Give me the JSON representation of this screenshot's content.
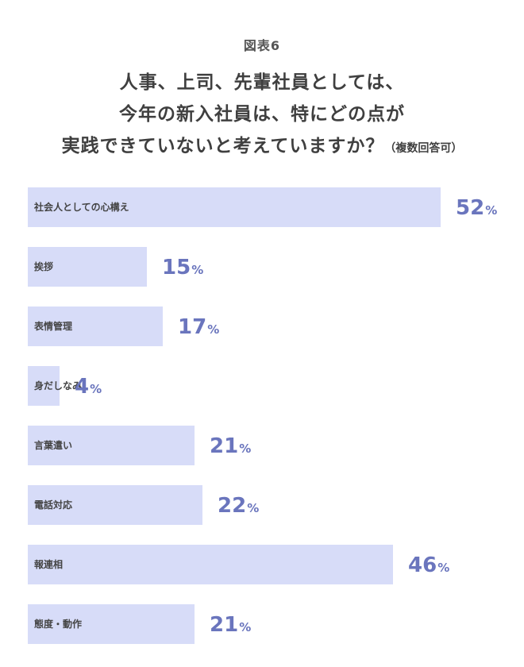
{
  "figure_label": "図表6",
  "title_lines": [
    "人事、上司、先輩社員としては、",
    "今年の新入社員は、特にどの点が",
    "実践できていないと考えていますか？"
  ],
  "title_note": "（複数回答可）",
  "colors": {
    "bar": "#d7dcf8",
    "value_text": "#6a75bd",
    "label_text": "#444444"
  },
  "chart_data": {
    "type": "bar",
    "orientation": "horizontal",
    "unit": "%",
    "categories": [
      "社会人としての心構え",
      "挨拶",
      "表情管理",
      "身だしなみ",
      "言葉遣い",
      "電話対応",
      "報連相",
      "態度・動作"
    ],
    "values": [
      52,
      15,
      17,
      4,
      21,
      22,
      46,
      21
    ],
    "xlim": [
      0,
      52
    ],
    "grid": false,
    "legend": "none"
  }
}
